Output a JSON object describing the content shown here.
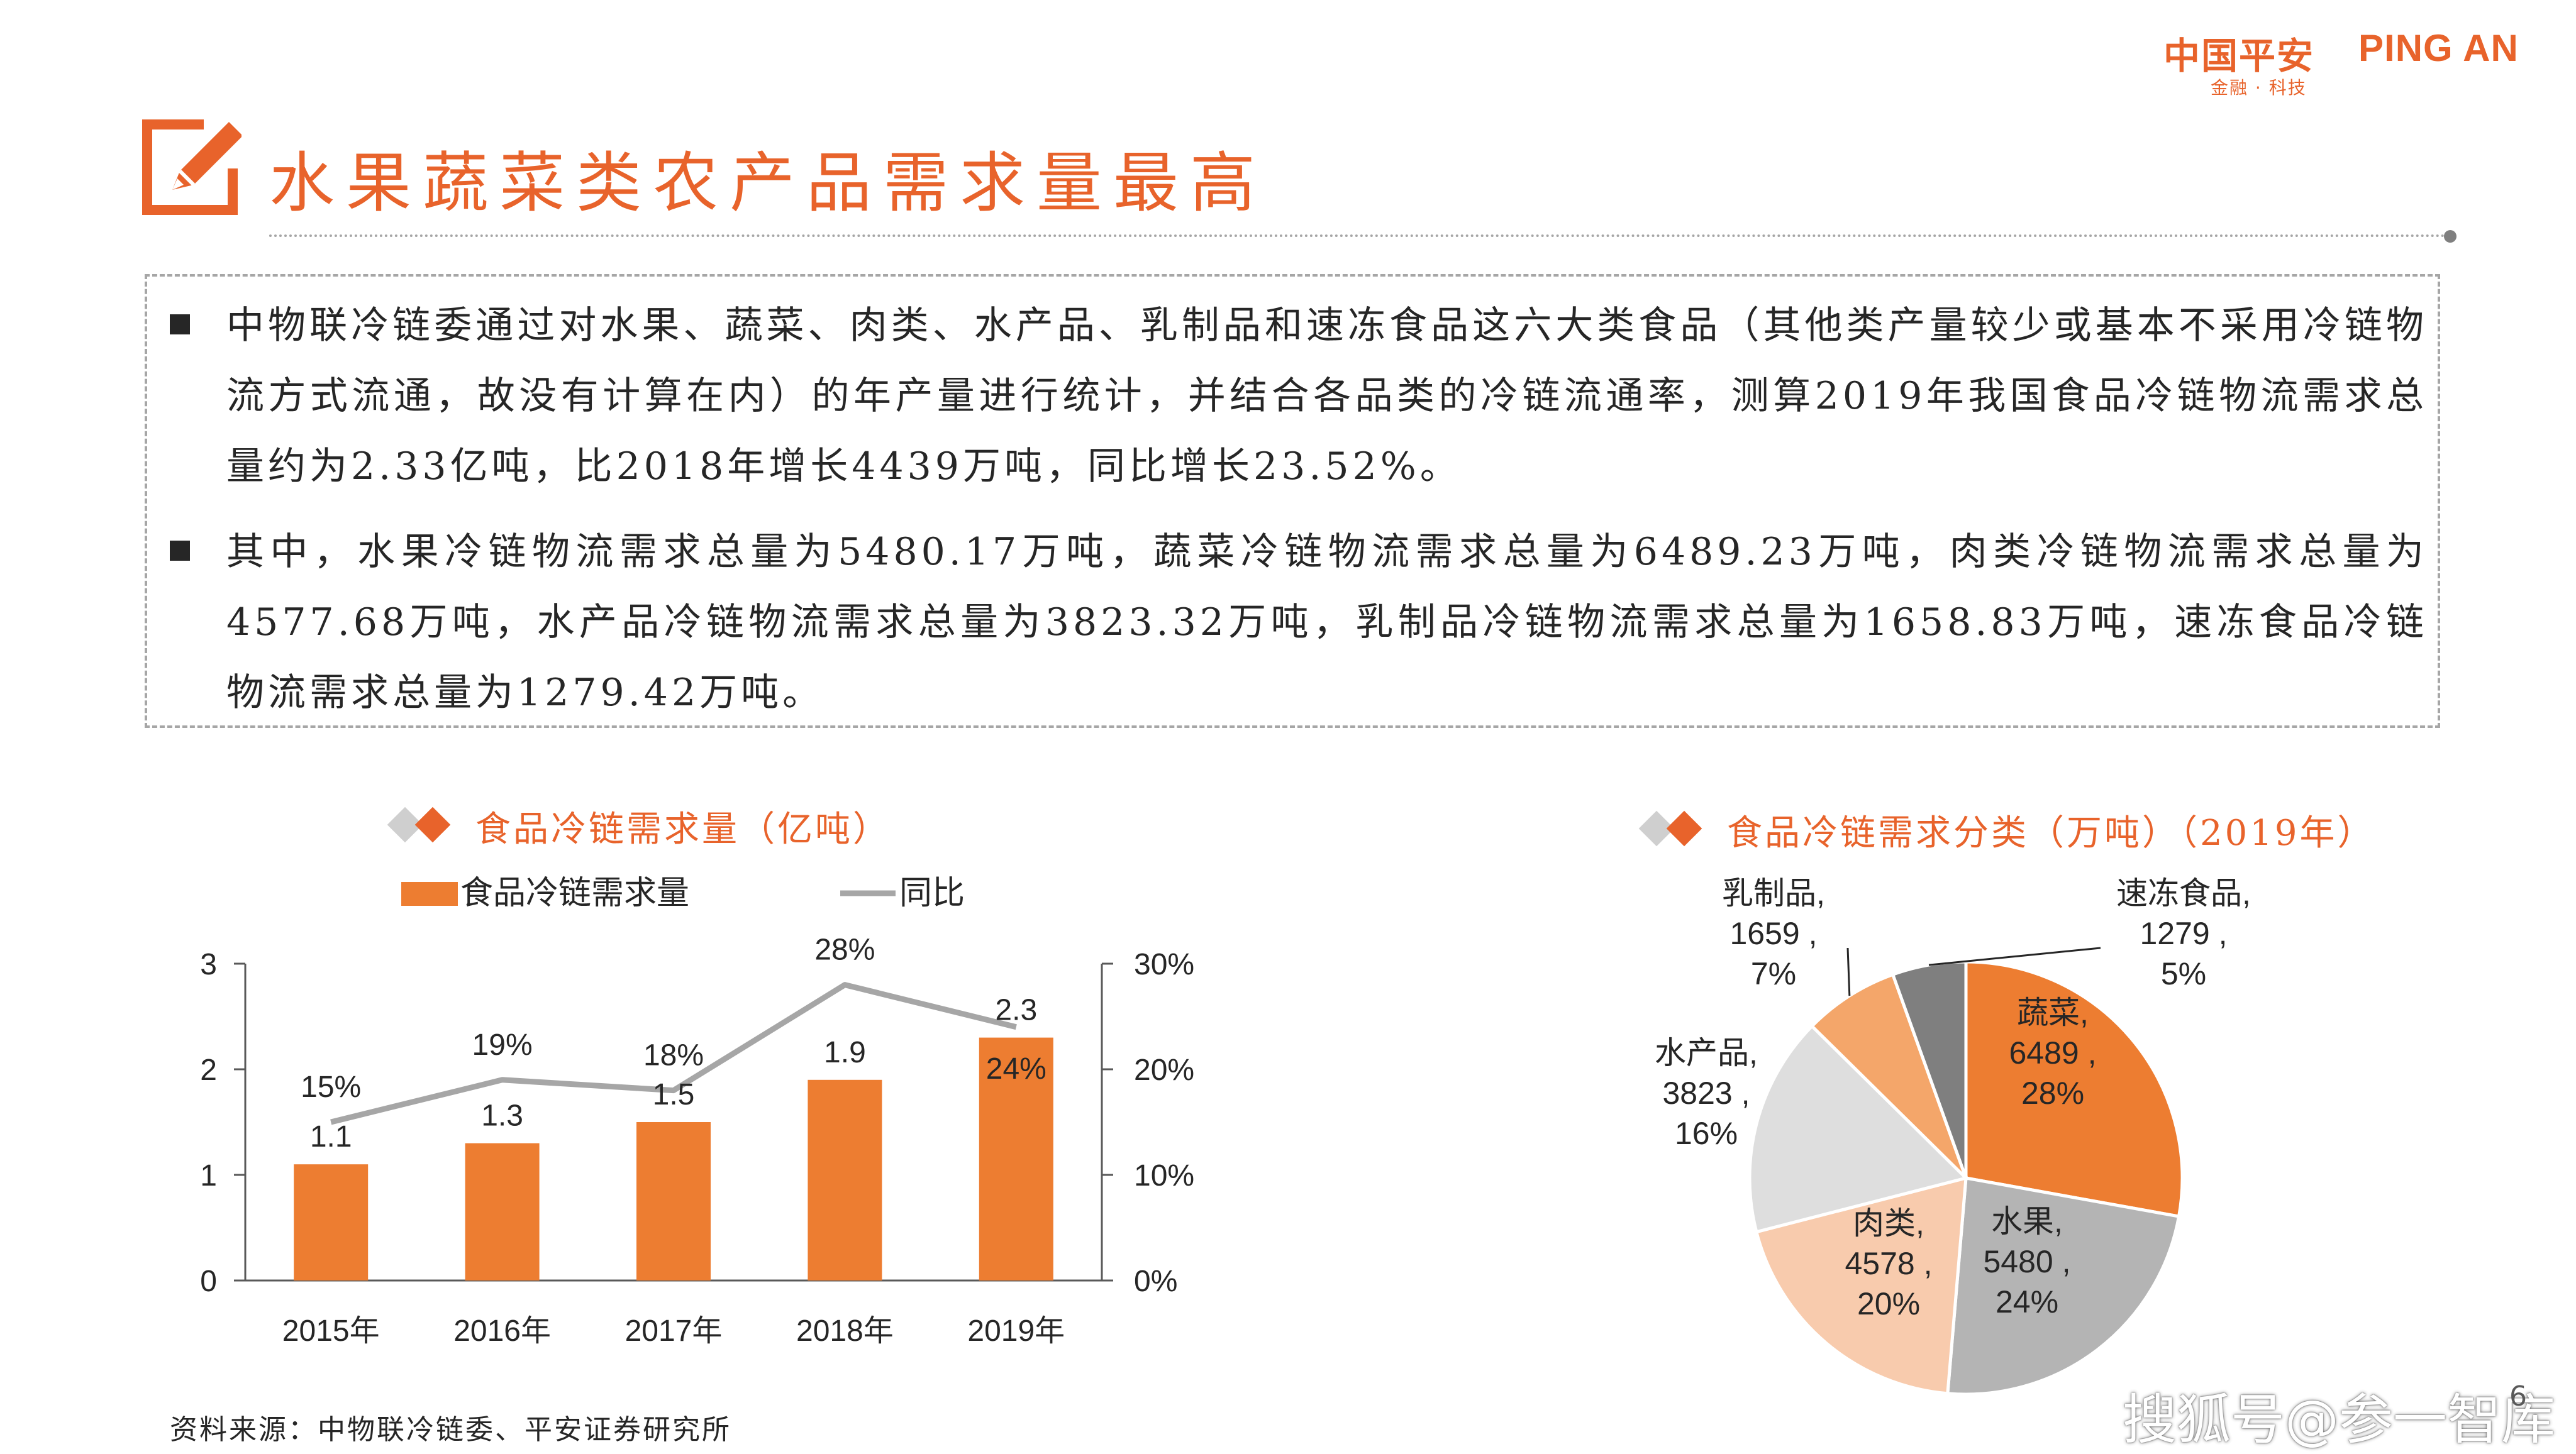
{
  "brand": {
    "logo_cn": "中国平安",
    "logo_en": "PING AN",
    "logo_sub": "金融 · 科技",
    "color": "#E8632B"
  },
  "header": {
    "title": "水果蔬菜类农产品需求量最高",
    "title_icon": "pencil-checkbox-icon"
  },
  "body": {
    "bullets": [
      "中物联冷链委通过对水果、蔬菜、肉类、水产品、乳制品和速冻食品这六大类食品（其他类产量较少或基本不采用冷链物流方式流通，故没有计算在内）的年产量进行统计，并结合各品类的冷链流通率，测算2019年我国食品冷链物流需求总量约为2.33亿吨，比2018年增长4439万吨，同比增长23.52%。",
      "其中，水果冷链物流需求总量为5480.17万吨，蔬菜冷链物流需求总量为6489.23万吨，肉类冷链物流需求总量为4577.68万吨，水产品冷链物流需求总量为3823.32万吨，乳制品冷链物流需求总量为1658.83万吨，速冻食品冷链物流需求总量为1279.42万吨。"
    ]
  },
  "chart_data": [
    {
      "type": "bar",
      "title": "食品冷链需求量（亿吨）",
      "categories": [
        "2015年",
        "2016年",
        "2017年",
        "2018年",
        "2019年"
      ],
      "series": [
        {
          "name": "食品冷链需求量",
          "kind": "bar",
          "axis": "left",
          "color": "#ED7D31",
          "values": [
            1.1,
            1.3,
            1.5,
            1.9,
            2.3
          ],
          "labels": [
            "1.1",
            "1.3",
            "1.5",
            "1.9",
            "2.3"
          ]
        },
        {
          "name": "同比",
          "kind": "line",
          "axis": "right",
          "color": "#A6A6A6",
          "values": [
            15,
            19,
            18,
            28,
            24
          ],
          "labels": [
            "15%",
            "19%",
            "18%",
            "28%",
            "24%"
          ]
        }
      ],
      "ylim": [
        0,
        3
      ],
      "yticks": [
        "0",
        "1",
        "2",
        "3"
      ],
      "y2lim": [
        0,
        30
      ],
      "y2ticks": [
        "0%",
        "10%",
        "20%",
        "30%"
      ],
      "legend": "top",
      "grid": false
    },
    {
      "type": "pie",
      "title": "食品冷链需求分类（万吨）（2019年）",
      "slices": [
        {
          "name": "蔬菜",
          "value": 6489,
          "percent": "28%",
          "color": "#ED7D31"
        },
        {
          "name": "水果",
          "value": 5480,
          "percent": "24%",
          "color": "#B4B4B4"
        },
        {
          "name": "肉类",
          "value": 4578,
          "percent": "20%",
          "color": "#F8CBAD"
        },
        {
          "name": "水产品",
          "value": 3823,
          "percent": "16%",
          "color": "#DEDEDE"
        },
        {
          "name": "乳制品",
          "value": 1659,
          "percent": "7%",
          "color": "#F4A66A"
        },
        {
          "name": "速冻食品",
          "value": 1279,
          "percent": "5%",
          "color": "#7F7F7F"
        }
      ],
      "start": "top",
      "direction": "clockwise"
    }
  ],
  "footer": {
    "source": "资料来源：中物联冷链委、平安证券研究所",
    "watermark": "搜狐号@参一智库",
    "page_number": "6"
  }
}
